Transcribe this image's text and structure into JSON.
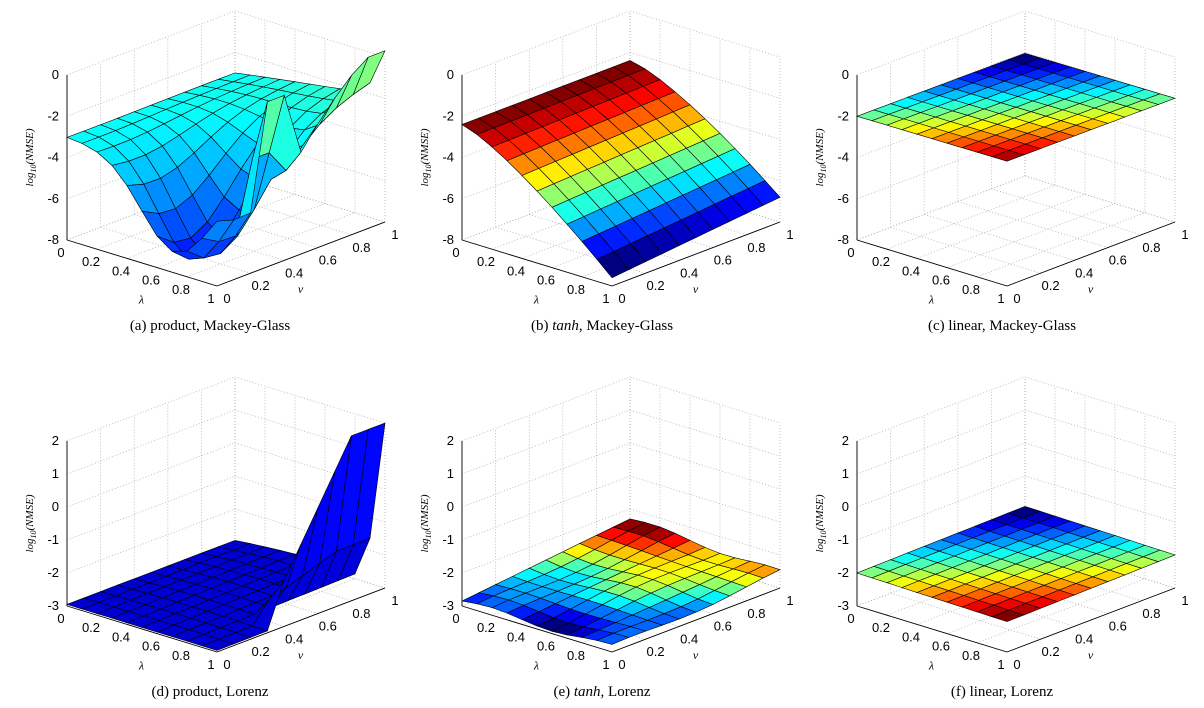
{
  "figure": {
    "panels": [
      {
        "caption_label": "(a) product, Mackey-Glass",
        "caption_prefix": "(a)",
        "caption_it": "",
        "caption_rest": "product, Mackey-Glass"
      },
      {
        "caption_label": "(b) tanh, Mackey-Glass",
        "caption_prefix": "(b)",
        "caption_it": "tanh",
        "caption_rest": ", Mackey-Glass"
      },
      {
        "caption_label": "(c) linear, Mackey-Glass",
        "caption_prefix": "(c)",
        "caption_it": "",
        "caption_rest": "linear, Mackey-Glass"
      },
      {
        "caption_label": "(d) product, Lorenz",
        "caption_prefix": "(d)",
        "caption_it": "",
        "caption_rest": "product, Lorenz"
      },
      {
        "caption_label": "(e) tanh, Lorenz",
        "caption_prefix": "(e)",
        "caption_it": "tanh",
        "caption_rest": ", Lorenz"
      },
      {
        "caption_label": "(f) linear, Lorenz",
        "caption_prefix": "(f)",
        "caption_it": "",
        "caption_rest": "linear, Lorenz"
      }
    ]
  },
  "chart_data": [
    {
      "type": "surface",
      "panel": "a",
      "xlabel": "λ",
      "ylabel": "v",
      "zlabel": "log10(NMSE)",
      "xticks": [
        "0",
        "0.2",
        "0.4",
        "0.6",
        "0.8",
        "1"
      ],
      "yticks": [
        "0",
        "0.2",
        "0.4",
        "0.6",
        "0.8",
        "1"
      ],
      "zticks": [
        "0",
        "-2",
        "-4",
        "-6",
        "-8"
      ],
      "zlim": [
        -8,
        0
      ],
      "grid": true,
      "colormap": "jet",
      "surface_summary": {
        "min": -8.0,
        "max_visible": 0.3,
        "shape": "bowl with minimum near λ=0.7, v=0.2; sharp spikes near λ=1",
        "edge_value_low_lambda": -3.0
      }
    },
    {
      "type": "surface",
      "panel": "b",
      "xlabel": "λ",
      "ylabel": "v",
      "zlabel": "log10(NMSE)",
      "xticks": [
        "0",
        "0.2",
        "0.4",
        "0.6",
        "0.8",
        "1"
      ],
      "yticks": [
        "0",
        "0.2",
        "0.4",
        "0.6",
        "0.8",
        "1"
      ],
      "zticks": [
        "0",
        "-2",
        "-4",
        "-6",
        "-8"
      ],
      "zlim": [
        -8,
        0
      ],
      "grid": true,
      "colormap": "jet",
      "surface_summary": {
        "min": -7.8,
        "max": -2.4,
        "shape": "descends from about -2.5 at small λ to about -7.5 at λ≈1"
      }
    },
    {
      "type": "surface",
      "panel": "c",
      "xlabel": "λ",
      "ylabel": "v",
      "zlabel": "log10(NMSE)",
      "xticks": [
        "0",
        "0.2",
        "0.4",
        "0.6",
        "0.8",
        "1"
      ],
      "yticks": [
        "0",
        "0.2",
        "0.4",
        "0.6",
        "0.8",
        "1"
      ],
      "zticks": [
        "0",
        "-2",
        "-4",
        "-6",
        "-8"
      ],
      "zlim": [
        -8,
        0
      ],
      "grid": true,
      "colormap": "jet",
      "surface_summary": {
        "min": -2.05,
        "max": -1.95,
        "shape": "nearly flat plane at about -2"
      }
    },
    {
      "type": "surface",
      "panel": "d",
      "xlabel": "λ",
      "ylabel": "v",
      "zlabel": "log10(NMSE)",
      "xticks": [
        "0",
        "0.2",
        "0.4",
        "0.6",
        "0.8",
        "1"
      ],
      "yticks": [
        "0",
        "0.2",
        "0.4",
        "0.6",
        "0.8",
        "1"
      ],
      "zticks": [
        "2",
        "1",
        "0",
        "-1",
        "-2",
        "-3"
      ],
      "zlim": [
        -3,
        2
      ],
      "grid": true,
      "colormap": "jet",
      "surface_summary": {
        "min": -3.0,
        "max": 2.0,
        "shape": "mostly near -3, rises sharply to about 2 at λ≈1, high v"
      }
    },
    {
      "type": "surface",
      "panel": "e",
      "xlabel": "λ",
      "ylabel": "v",
      "zlabel": "log10(NMSE)",
      "xticks": [
        "0",
        "0.2",
        "0.4",
        "0.6",
        "0.8",
        "1"
      ],
      "yticks": [
        "0",
        "0.2",
        "0.4",
        "0.6",
        "0.8",
        "1"
      ],
      "zticks": [
        "2",
        "1",
        "0",
        "-1",
        "-2",
        "-3"
      ],
      "zlim": [
        -3,
        2
      ],
      "grid": true,
      "colormap": "jet",
      "surface_summary": {
        "min": -3.0,
        "max": -2.2,
        "shape": "low surface around -2.8 to -2.2"
      }
    },
    {
      "type": "surface",
      "panel": "f",
      "xlabel": "λ",
      "ylabel": "v",
      "zlabel": "log10(NMSE)",
      "xticks": [
        "0",
        "0.2",
        "0.4",
        "0.6",
        "0.8",
        "1"
      ],
      "yticks": [
        "0",
        "0.2",
        "0.4",
        "0.6",
        "0.8",
        "1"
      ],
      "zticks": [
        "2",
        "1",
        "0",
        "-1",
        "-2",
        "-3"
      ],
      "zlim": [
        -3,
        2
      ],
      "grid": true,
      "colormap": "jet",
      "surface_summary": {
        "min": -2.1,
        "max": -1.9,
        "shape": "nearly flat plane at about -2"
      }
    }
  ]
}
